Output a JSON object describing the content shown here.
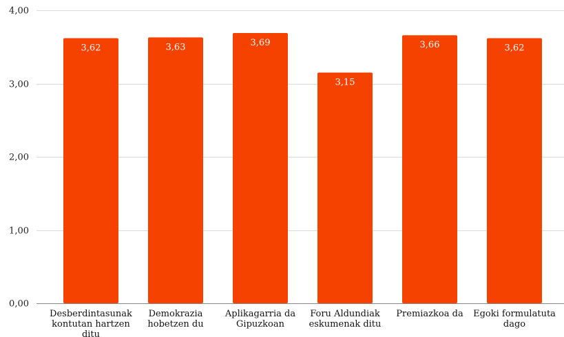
{
  "chart_data": {
    "type": "bar",
    "categories": [
      [
        "Desberdintasunak",
        "kontutan hartzen",
        "ditu"
      ],
      [
        "Demokrazia",
        "hobetzen du"
      ],
      [
        "Aplikagarria da",
        "Gipuzkoan"
      ],
      [
        "Foru Aldundiak",
        "eskumenak ditu"
      ],
      [
        "Premiazkoa da"
      ],
      [
        "Egoki formulatuta",
        "dago"
      ]
    ],
    "values": [
      3.62,
      3.63,
      3.69,
      3.15,
      3.66,
      3.62
    ],
    "data_labels": [
      "3,62",
      "3,63",
      "3,69",
      "3,15",
      "3,66",
      "3,62"
    ],
    "title": "",
    "xlabel": "",
    "ylabel": "",
    "ylim": [
      0,
      4
    ],
    "yticks": [
      0,
      1,
      2,
      3,
      4
    ],
    "ytick_labels": [
      "0,00",
      "1,00",
      "2,00",
      "3,00",
      "4,00"
    ],
    "grid": true,
    "legend": "none",
    "colors": {
      "bar": "#f54200"
    }
  }
}
